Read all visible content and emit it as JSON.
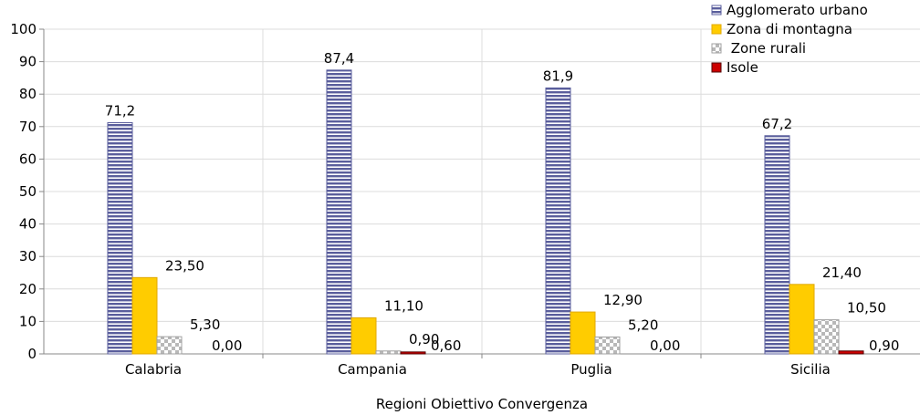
{
  "chart_data": {
    "type": "bar",
    "xlabel": "Regioni Obiettivo Convergenza",
    "ylabel": "",
    "ylim": [
      0,
      100
    ],
    "yticks": [
      0,
      10,
      20,
      30,
      40,
      50,
      60,
      70,
      80,
      90,
      100
    ],
    "grid": true,
    "legend_position": "top-right",
    "categories": [
      "Calabria",
      "Campania",
      "Puglia",
      "Sicilia"
    ],
    "series": [
      {
        "name": "Agglomerato urbano",
        "values": [
          71.2,
          87.4,
          81.9,
          67.2
        ],
        "labels": [
          "71,2",
          "87,4",
          "81,9",
          "67,2"
        ],
        "color": "#5a5e9c",
        "pattern": "horizontal-stripes"
      },
      {
        "name": "Zona di montagna",
        "values": [
          23.5,
          11.1,
          12.9,
          21.4
        ],
        "labels": [
          "23,50",
          "11,10",
          "12,90",
          "21,40"
        ],
        "color": "#ffcc00",
        "pattern": "solid"
      },
      {
        "name": " Zone rurali",
        "values": [
          5.3,
          0.9,
          5.2,
          10.5
        ],
        "labels": [
          "5,30",
          "0,90",
          "5,20",
          "10,50"
        ],
        "color": "#b3b3b3",
        "pattern": "checker"
      },
      {
        "name": "Isole",
        "values": [
          0.0,
          0.6,
          0.0,
          0.9
        ],
        "labels": [
          "0,00",
          "0,60",
          "0,00",
          "0,90"
        ],
        "color": "#cc0000",
        "pattern": "solid-dark"
      }
    ]
  }
}
